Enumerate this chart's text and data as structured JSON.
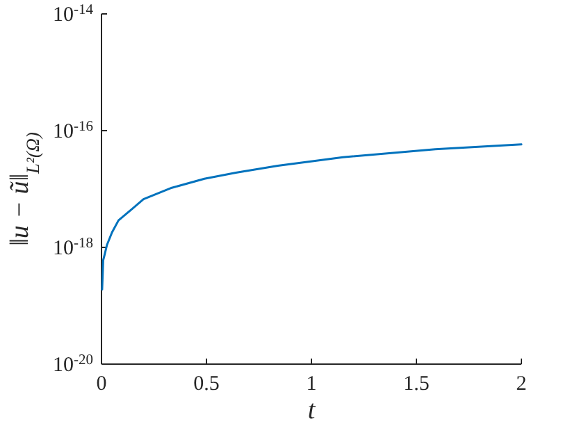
{
  "chart_data": {
    "type": "line",
    "xlabel": "t",
    "ylabel": "‖u − ũ‖$_{L²(Ω)}$",
    "log": "y",
    "xlim": [
      0,
      2
    ],
    "ylim": [
      1e-20,
      1e-14
    ],
    "xticks": [
      0,
      0.5,
      1,
      1.5,
      2
    ],
    "yticks": [
      {
        "value": 1e-20,
        "label": "10$^{-20}$"
      },
      {
        "value": 1e-18,
        "label": "10$^{-18}$"
      },
      {
        "value": 1e-16,
        "label": "10$^{-16}$"
      },
      {
        "value": 1e-14,
        "label": "10$^{-14}$"
      }
    ],
    "grid": false,
    "series": [
      {
        "color": "#0072bd",
        "x": [
          0.003,
          0.008,
          0.015,
          0.026,
          0.05,
          0.081,
          0.147,
          0.2,
          0.335,
          0.49,
          0.64,
          0.84,
          1.15,
          1.59,
          2.0
        ],
        "values": [
          1.9e-19,
          6e-19,
          7.5e-19,
          1.1e-18,
          1.8e-18,
          2.9e-18,
          4.6e-18,
          6.7e-18,
          1.05e-17,
          1.5e-17,
          1.9e-17,
          2.5e-17,
          3.5e-17,
          4.8e-17,
          5.8e-17
        ]
      }
    ]
  }
}
